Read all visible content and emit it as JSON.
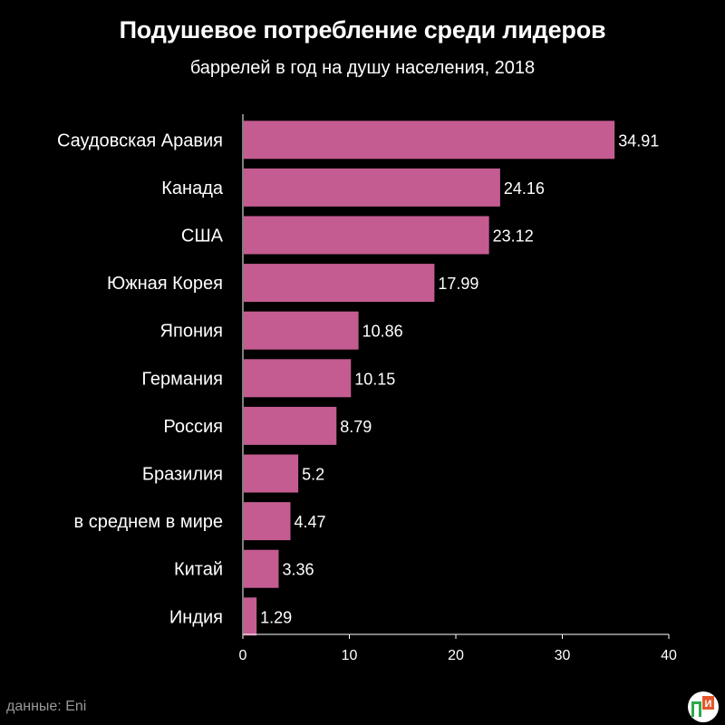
{
  "title": "Подушевое потребление среди лидеров",
  "subtitle": "баррелей в год на душу населения, 2018",
  "source": "данные: Eni",
  "logo": {
    "icon": "newspaper-logo-icon",
    "text": "И"
  },
  "colors": {
    "background": "#000000",
    "bar": "#c45c91",
    "text": "#ffffff",
    "axis": "#ffffff",
    "source": "#999999",
    "logo_green": "#2ea84a",
    "logo_orange": "#e3572b"
  },
  "chart_data": {
    "type": "bar",
    "orientation": "horizontal",
    "categories": [
      "Саудовская Аравия",
      "Канада",
      "США",
      "Южная Корея",
      "Япония",
      "Германия",
      "Россия",
      "Бразилия",
      "в среднем в мире",
      "Китай",
      "Индия"
    ],
    "values": [
      34.91,
      24.16,
      23.12,
      17.99,
      10.86,
      10.15,
      8.79,
      5.2,
      4.47,
      3.36,
      1.29
    ],
    "value_labels": [
      "34.91",
      "24.16",
      "23.12",
      "17.99",
      "10.86",
      "10.15",
      "8.79",
      "5.2",
      "4.47",
      "3.36",
      "1.29"
    ],
    "xlim": [
      0,
      40
    ],
    "xticks": [
      0,
      10,
      20,
      30,
      40
    ],
    "xlabel": "",
    "ylabel": "",
    "grid": false,
    "legend": "none"
  }
}
